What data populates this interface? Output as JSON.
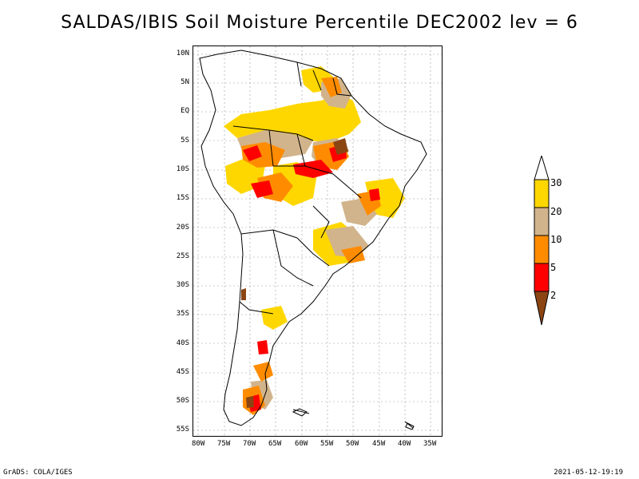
{
  "title": "SALDAS/IBIS Soil Moisture Percentile DEC2002 lev = 6",
  "footer": {
    "left": "GrADS: COLA/IGES",
    "right": "2021-05-12-19:19"
  },
  "map": {
    "lat_labels": [
      "10N",
      "5N",
      "EQ",
      "5S",
      "10S",
      "15S",
      "20S",
      "25S",
      "30S",
      "35S",
      "40S",
      "45S",
      "50S",
      "55S"
    ],
    "lon_labels": [
      "80W",
      "75W",
      "70W",
      "65W",
      "60W",
      "55W",
      "50W",
      "45W",
      "40W",
      "35W"
    ],
    "lat_range": [
      -56,
      12
    ],
    "lon_range": [
      -81,
      -34
    ],
    "colors": {
      "lt2": "#8b4513",
      "2to5": "#ff0000",
      "5to10": "#ff8c00",
      "10to20": "#d2b48c",
      "20to30": "#ffd700"
    }
  },
  "colorbar": {
    "labels": [
      "30",
      "20",
      "10",
      "5",
      "2"
    ],
    "colors": [
      "#ffffff",
      "#ffd700",
      "#d2b48c",
      "#ff8c00",
      "#ff0000",
      "#8b4513"
    ]
  }
}
